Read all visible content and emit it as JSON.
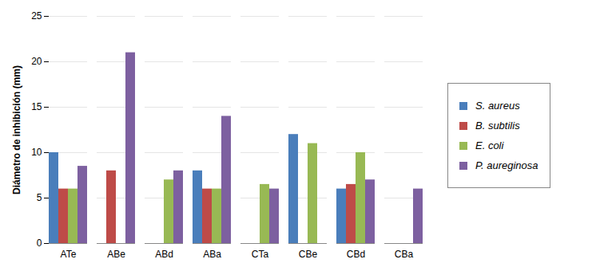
{
  "chart_data": {
    "type": "bar",
    "y_label": "Diámetro de inhibición (mm)",
    "categories": [
      "ATe",
      "ABe",
      "ABd",
      "ABa",
      "CTa",
      "CBe",
      "CBd",
      "CBa"
    ],
    "series": [
      {
        "name": "S. aureus",
        "color": "#4a7ebb",
        "values": [
          10,
          0,
          0,
          8,
          0,
          12,
          6,
          0
        ]
      },
      {
        "name": "B. subtilis",
        "color": "#be4b48",
        "values": [
          6,
          8,
          0,
          6,
          0,
          0,
          6.5,
          0
        ]
      },
      {
        "name": "E. coli",
        "color": "#98b954",
        "values": [
          6,
          0,
          7,
          6,
          6.5,
          11,
          10,
          0
        ]
      },
      {
        "name": "P. aureginosa",
        "color": "#7d60a0",
        "values": [
          8.5,
          21,
          8,
          14,
          6,
          0,
          7,
          6
        ]
      }
    ],
    "ylim": [
      0,
      25
    ],
    "yticks": [
      0,
      5,
      10,
      15,
      20,
      25
    ],
    "grid": true,
    "legend": "right"
  }
}
